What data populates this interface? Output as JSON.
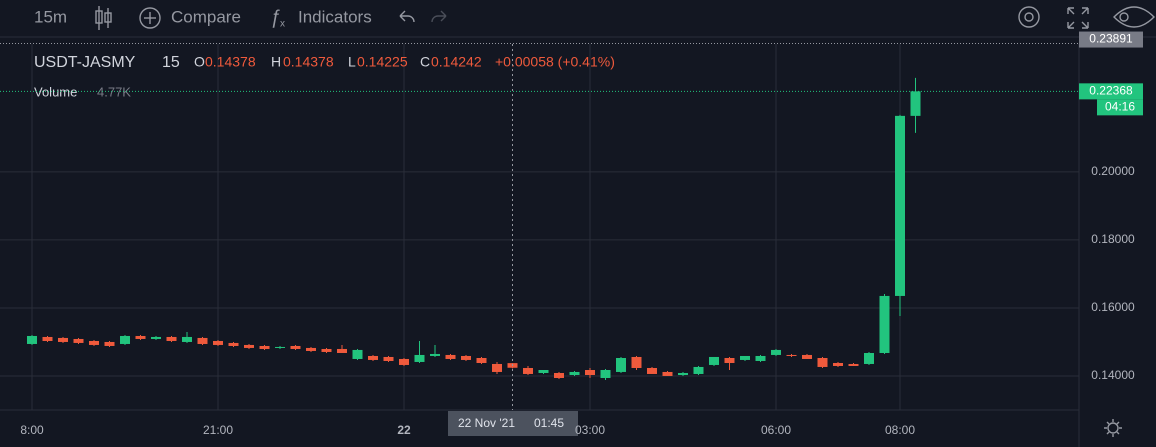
{
  "toolbar": {
    "interval": "15m",
    "compare": "Compare",
    "indicators": "Indicators"
  },
  "chart_data": {
    "type": "candlestick",
    "symbol": "USDT-JASMY",
    "interval": "15",
    "ohlc_labels": [
      "O",
      "H",
      "L",
      "C"
    ],
    "change": "+0.00058 (+0.41%)",
    "volume_label": "Volume",
    "volume": "4.77K",
    "categories": [
      "8:00",
      null,
      null,
      null,
      null,
      null,
      null,
      null,
      null,
      null,
      null,
      null,
      "21:00",
      null,
      null,
      null,
      null,
      null,
      null,
      null,
      null,
      null,
      null,
      null,
      "22",
      null,
      null,
      null,
      null,
      null,
      null,
      null,
      null,
      null,
      null,
      null,
      "03:00",
      null,
      null,
      null,
      null,
      null,
      null,
      null,
      null,
      null,
      null,
      null,
      "06:00",
      null,
      null,
      null,
      null,
      null,
      null,
      null,
      "08:00",
      null
    ],
    "open": [
      0.14941,
      0.15147,
      0.15118,
      0.15088,
      0.15029,
      0.15,
      0.14941,
      0.15176,
      0.15088,
      0.15147,
      0.15,
      0.15118,
      0.15029,
      0.14971,
      0.14912,
      0.14882,
      0.14824,
      0.14882,
      0.14824,
      0.14794,
      0.14794,
      0.145,
      0.14588,
      0.14559,
      0.145,
      0.14412,
      0.14588,
      0.14618,
      0.14588,
      0.14529,
      0.14353,
      0.14378,
      0.14235,
      0.14088,
      0.14088,
      0.14029,
      0.14176,
      0.13941,
      0.14118,
      0.14559,
      0.14235,
      0.14118,
      0.14029,
      0.14059,
      0.14324,
      0.14529,
      0.14471,
      0.14441,
      0.14618,
      0.14618,
      0.14618,
      0.14529,
      0.14382,
      0.14353,
      0.14353,
      0.14676,
      0.16353,
      0.21647
    ],
    "high": [
      0.15206,
      0.15176,
      0.15147,
      0.15118,
      0.15059,
      0.15029,
      0.15206,
      0.15206,
      0.15176,
      0.15176,
      0.15294,
      0.15147,
      0.15059,
      0.15,
      0.14941,
      0.14912,
      0.14882,
      0.14912,
      0.14853,
      0.14824,
      0.14912,
      0.14794,
      0.14618,
      0.14588,
      0.14529,
      0.15029,
      0.14912,
      0.14647,
      0.14618,
      0.14559,
      0.14412,
      0.14378,
      0.14294,
      0.14176,
      0.14118,
      0.14147,
      0.14235,
      0.14206,
      0.14559,
      0.14588,
      0.14265,
      0.14147,
      0.14118,
      0.14294,
      0.14559,
      0.14559,
      0.14588,
      0.14618,
      0.14794,
      0.14647,
      0.14647,
      0.14559,
      0.14412,
      0.14382,
      0.14706,
      0.16412,
      0.21676,
      0.22765
    ],
    "low": [
      0.14912,
      0.15,
      0.14971,
      0.14941,
      0.14882,
      0.14853,
      0.14912,
      0.15059,
      0.15059,
      0.15,
      0.14971,
      0.14912,
      0.14882,
      0.14853,
      0.14794,
      0.14765,
      0.14794,
      0.14765,
      0.14706,
      0.14676,
      0.14676,
      0.14471,
      0.14441,
      0.14412,
      0.14294,
      0.14382,
      0.14559,
      0.14471,
      0.14441,
      0.14353,
      0.14059,
      0.14225,
      0.14029,
      0.14059,
      0.13912,
      0.14,
      0.13941,
      0.13882,
      0.14088,
      0.14176,
      0.14059,
      0.14,
      0.14,
      0.14029,
      0.14294,
      0.14176,
      0.14441,
      0.14412,
      0.14588,
      0.14559,
      0.145,
      0.14235,
      0.14265,
      0.14294,
      0.14324,
      0.14647,
      0.15765,
      0.21147
    ],
    "close": [
      0.15176,
      0.15029,
      0.15,
      0.14971,
      0.14912,
      0.14882,
      0.15176,
      0.15088,
      0.15147,
      0.15029,
      0.15147,
      0.14941,
      0.14912,
      0.14882,
      0.14824,
      0.14794,
      0.14853,
      0.14794,
      0.14735,
      0.14706,
      0.14676,
      0.14765,
      0.14471,
      0.14441,
      0.14324,
      0.14618,
      0.14647,
      0.145,
      0.14471,
      0.14382,
      0.14118,
      0.14242,
      0.14059,
      0.14176,
      0.13941,
      0.14118,
      0.14029,
      0.14176,
      0.14529,
      0.14235,
      0.14059,
      0.14,
      0.14088,
      0.14265,
      0.14559,
      0.14382,
      0.14588,
      0.14588,
      0.14765,
      0.14588,
      0.145,
      0.14265,
      0.14294,
      0.14294,
      0.14676,
      0.16353,
      0.21647,
      0.22368
    ],
    "up_color": "#22c47e",
    "down_color": "#ef5a3c",
    "ylim": [
      0.13,
      0.2376
    ],
    "yticks": [
      {
        "value": 0.14,
        "label": "0.14000"
      },
      {
        "value": 0.16,
        "label": "0.16000"
      },
      {
        "value": 0.18,
        "label": "0.18000"
      },
      {
        "value": 0.2,
        "label": "0.20000"
      }
    ],
    "grid": true,
    "last_price": 0.22368,
    "countdown": "04:16",
    "top_price_label": 0.23891,
    "crosshair": {
      "date": "22 Nov '21",
      "time": "01:45"
    }
  }
}
